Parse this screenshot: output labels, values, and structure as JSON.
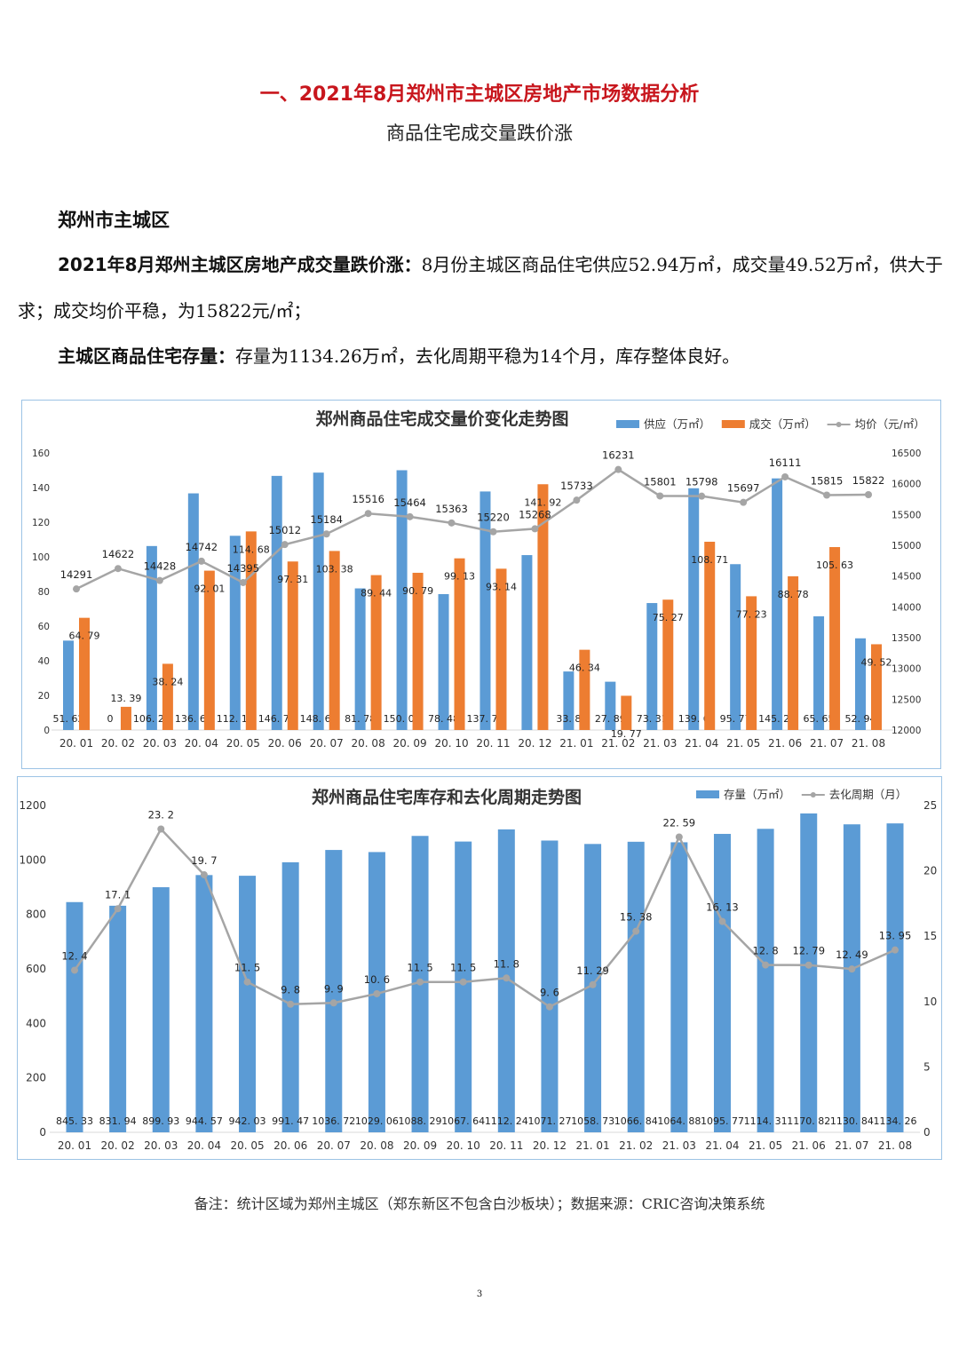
{
  "title": "一、2021年8月郑州市主城区房地产市场数据分析",
  "subtitle": "商品住宅成交量跌价涨",
  "section": "郑州市主城区",
  "paragraphs": [
    {
      "bold": "2021年8月郑州主城区房地产成交量跌价涨：",
      "text": "8月份主城区商品住宅供应52.94万㎡，成交量49.52万㎡，供大于求；成交均价平稳，为15822元/㎡；"
    },
    {
      "bold": "主城区商品住宅存量：",
      "text": "存量为1134.26万㎡，去化周期平稳为14个月，库存整体良好。"
    }
  ],
  "note": "备注：统计区域为郑州主城区（郑东新区不包含白沙板块）；数据来源：CRIC咨询决策系统",
  "page_number": "3",
  "colors": {
    "blue": "#5b9bd5",
    "orange": "#ed7d31",
    "gray": "#a5a5a5",
    "title_red": "#c8161d"
  },
  "chart_data": [
    {
      "type": "bar+line",
      "title": "郑州商品住宅成交量价变化走势图",
      "categories": [
        "20.01",
        "20.02",
        "20.03",
        "20.04",
        "20.05",
        "20.06",
        "20.07",
        "20.08",
        "20.09",
        "20.10",
        "20.11",
        "20.12",
        "21.01",
        "21.02",
        "21.03",
        "21.04",
        "21.05",
        "21.06",
        "21.07",
        "21.08"
      ],
      "series": [
        {
          "name": "供应（万㎡）",
          "type": "bar",
          "axis": "left",
          "color": "#5b9bd5",
          "values": [
            51.62,
            0,
            106.24,
            136.65,
            112.15,
            146.74,
            148.63,
            81.78,
            150.01,
            78.48,
            137.74,
            101,
            33.8,
            27.89,
            73.31,
            139.6,
            95.77,
            145.29,
            65.65,
            52.94
          ],
          "labels": [
            "51.62",
            "0",
            "106.24",
            "136.65",
            "112.15",
            "146.74",
            "148.63",
            "81.78",
            "150.01",
            "78.48",
            "137.74",
            "",
            "33.8",
            "27.89",
            "73.31",
            "139.6",
            "95.77",
            "145.29",
            "65.65",
            "52.94"
          ]
        },
        {
          "name": "成交（万㎡）",
          "type": "bar",
          "axis": "left",
          "color": "#ed7d31",
          "values": [
            64.79,
            13.39,
            38.24,
            92.01,
            114.68,
            97.31,
            103.38,
            89.44,
            90.79,
            99.13,
            93.14,
            141.92,
            46.34,
            19.77,
            75.27,
            108.71,
            77.23,
            88.78,
            105.63,
            49.52
          ]
        },
        {
          "name": "均价（元/㎡）",
          "type": "line",
          "axis": "right",
          "color": "#a5a5a5",
          "values": [
            14291,
            14622,
            14428,
            14742,
            14395,
            15012,
            15184,
            15516,
            15464,
            15363,
            15220,
            15268,
            15733,
            16231,
            15801,
            15798,
            15697,
            16111,
            15815,
            15822
          ]
        }
      ],
      "yleft": {
        "range": [
          0,
          160
        ],
        "ticks": [
          0,
          20,
          40,
          60,
          80,
          100,
          120,
          140,
          160
        ]
      },
      "yright": {
        "range": [
          12000,
          16500
        ],
        "ticks": [
          12000,
          12500,
          13000,
          13500,
          14000,
          14500,
          15000,
          15500,
          16000,
          16500
        ]
      },
      "legend": "top-right",
      "grid": false
    },
    {
      "type": "bar+line",
      "title": "郑州商品住宅库存和去化周期走势图",
      "categories": [
        "20.01",
        "20.02",
        "20.03",
        "20.04",
        "20.05",
        "20.06",
        "20.07",
        "20.08",
        "20.09",
        "20.10",
        "20.11",
        "20.12",
        "21.01",
        "21.02",
        "21.03",
        "21.04",
        "21.05",
        "21.06",
        "21.07",
        "21.08"
      ],
      "series": [
        {
          "name": "存量（万㎡）",
          "type": "bar",
          "axis": "left",
          "color": "#5b9bd5",
          "values": [
            845.33,
            831.94,
            899.93,
            944.57,
            942.03,
            991.47,
            1036.72,
            1029.06,
            1088.29,
            1067.64,
            1112.24,
            1071.27,
            1058.73,
            1066.84,
            1064.88,
            1095.77,
            1114.31,
            1170.82,
            1130.84,
            1134.26
          ]
        },
        {
          "name": "去化周期（月）",
          "type": "line",
          "axis": "right",
          "color": "#a5a5a5",
          "values": [
            12.4,
            17.1,
            23.2,
            19.7,
            11.5,
            9.8,
            9.9,
            10.6,
            11.5,
            11.5,
            11.8,
            9.6,
            11.29,
            15.38,
            22.59,
            16.13,
            12.8,
            12.79,
            12.49,
            13.95
          ]
        }
      ],
      "yleft": {
        "range": [
          0,
          1200
        ],
        "ticks": [
          0,
          200,
          400,
          600,
          800,
          1000,
          1200
        ]
      },
      "yright": {
        "range": [
          0,
          25
        ],
        "ticks": [
          0,
          5,
          10,
          15,
          20,
          25
        ]
      },
      "legend": "top-right",
      "grid": false
    }
  ]
}
